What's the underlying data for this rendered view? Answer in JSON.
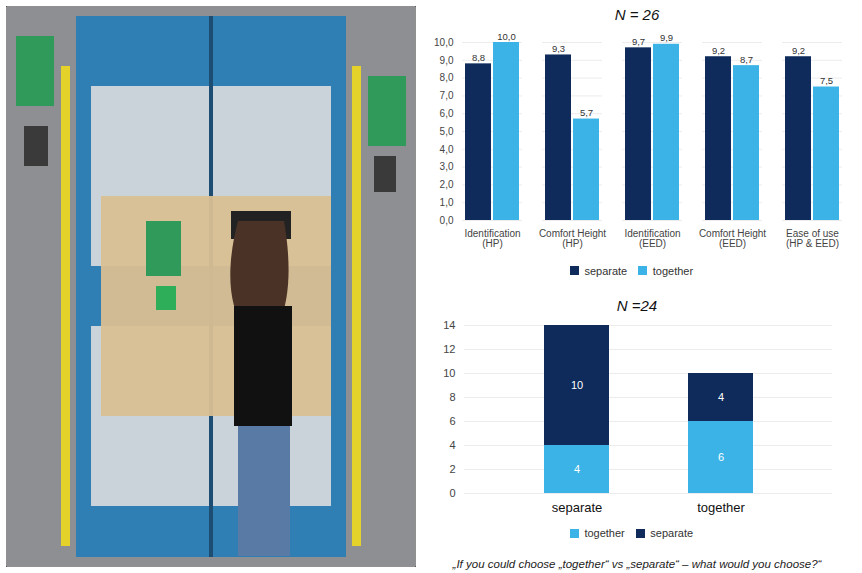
{
  "chart_data": [
    {
      "type": "bar",
      "title": "N = 26",
      "categories": [
        "Identification (HP)",
        "Comfort Height (HP)",
        "Identification (EED)",
        "Comfort Height (EED)",
        "Ease of use (HP & EED)"
      ],
      "series": [
        {
          "name": "separate",
          "color": "#0f2b5b",
          "values": [
            8.8,
            9.3,
            9.7,
            9.2,
            9.2
          ],
          "value_labels": [
            "8,8",
            "9,3",
            "9,7",
            "9,2",
            "9,2"
          ]
        },
        {
          "name": "together",
          "color": "#3bb3e6",
          "values": [
            10.0,
            5.7,
            9.9,
            8.7,
            7.5
          ],
          "value_labels": [
            "10,0",
            "5,7",
            "9,9",
            "8,7",
            "7,5"
          ]
        }
      ],
      "ylim": [
        0,
        10
      ],
      "yticks": [
        {
          "value": 0,
          "label": "0,0"
        },
        {
          "value": 1,
          "label": "1,0"
        },
        {
          "value": 2,
          "label": "2,0"
        },
        {
          "value": 3,
          "label": "3,0"
        },
        {
          "value": 4,
          "label": "4,0"
        },
        {
          "value": 5,
          "label": "5,0"
        },
        {
          "value": 6,
          "label": "6,0"
        },
        {
          "value": 7,
          "label": "7,0"
        },
        {
          "value": 8,
          "label": "8,0"
        },
        {
          "value": 9,
          "label": "9,0"
        },
        {
          "value": 10,
          "label": "10,0"
        }
      ],
      "grid": true,
      "legend": "bottom",
      "data_labels": true
    },
    {
      "type": "bar",
      "stacked": true,
      "title": "N =24",
      "xlabel": "„If you could choose „together“ vs „separate“ – what would you choose?“",
      "categories": [
        "separate",
        "together"
      ],
      "series": [
        {
          "name": "together",
          "color": "#3bb3e6",
          "values": [
            4,
            6
          ]
        },
        {
          "name": "separate",
          "color": "#0f2b5b",
          "values": [
            10,
            4
          ]
        }
      ],
      "ylim": [
        0,
        14
      ],
      "yticks": [
        0,
        2,
        4,
        6,
        8,
        10,
        12,
        14
      ],
      "grid": true,
      "legend": "bottom",
      "data_labels": true
    }
  ]
}
